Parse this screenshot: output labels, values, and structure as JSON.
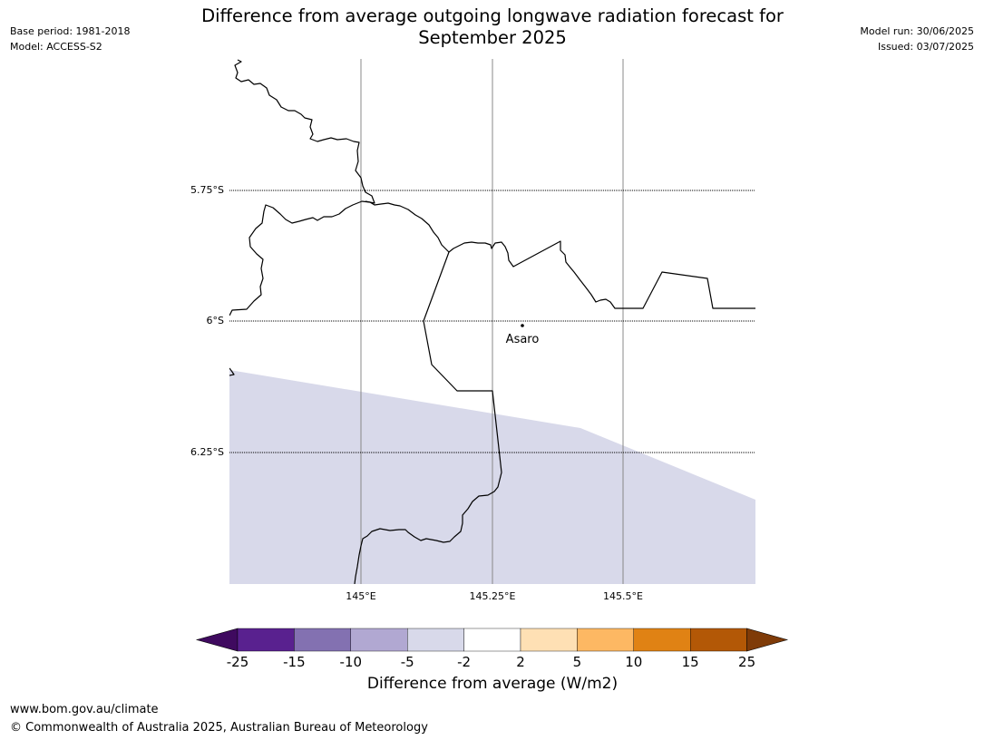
{
  "header": {
    "title_line1": "Difference from average outgoing longwave radiation forecast for",
    "title_line2": "September 2025",
    "base_period": "Base period: 1981-2018",
    "model": "Model: ACCESS-S2",
    "model_run": "Model run: 30/06/2025",
    "issued": "Issued: 03/07/2025"
  },
  "map": {
    "latitude_labels": [
      "5.75°S",
      "6°S",
      "6.25°S"
    ],
    "longitude_labels": [
      "145°E",
      "145.25°E",
      "145.5°E"
    ],
    "place": {
      "name": "Asaro"
    },
    "colors": {
      "forecast_fill": "#d8d9ea",
      "gridline_lon": "#888888",
      "gridline_lat": "#000000",
      "border": "#000000"
    }
  },
  "colorbar": {
    "title": "Difference from average (W/m2)",
    "ticks": [
      "-25",
      "-15",
      "-10",
      "-5",
      "-2",
      "2",
      "5",
      "10",
      "15",
      "25"
    ],
    "colors": [
      "#3f0a5f",
      "#59218f",
      "#8371b1",
      "#b1a8d2",
      "#d8d9ea",
      "#ffffff",
      "#fee0b4",
      "#fdb863",
      "#e08214",
      "#b35806",
      "#7f3b08"
    ]
  },
  "footer": {
    "url": "www.bom.gov.au/climate",
    "copyright": "© Commonwealth of Australia 2025, Australian Bureau of Meteorology"
  }
}
